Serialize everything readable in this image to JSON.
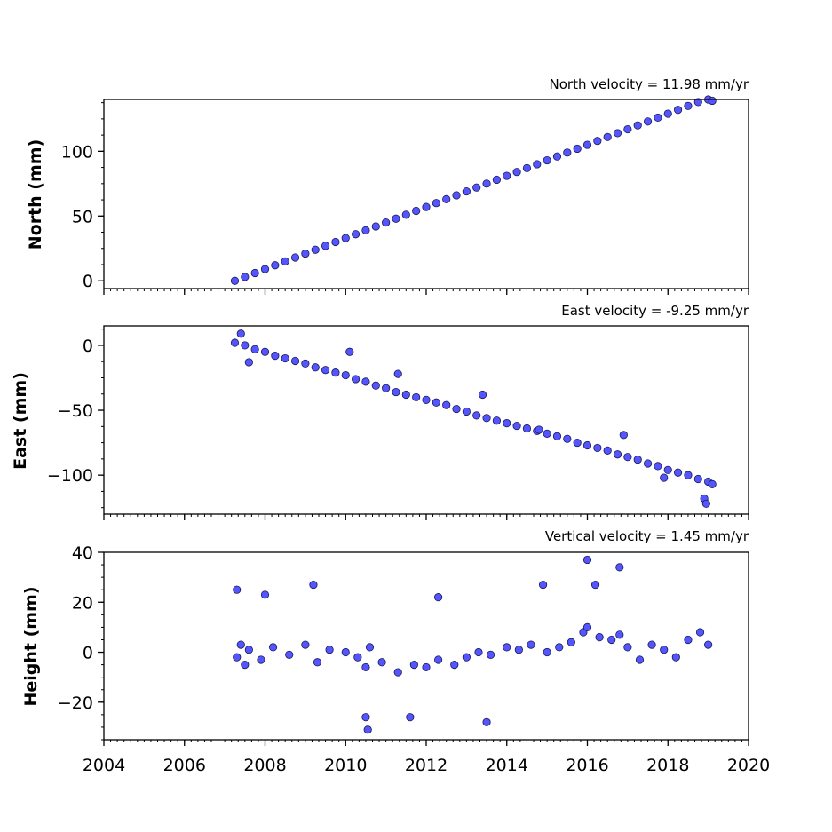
{
  "colors": {
    "marker_fill": "#5555ff",
    "marker_edge": "#1a1a55",
    "axes": "#000000"
  },
  "x_axis": {
    "ticks": [
      "2004",
      "2006",
      "2008",
      "2010",
      "2012",
      "2014",
      "2016",
      "2018",
      "2020"
    ],
    "xlim": [
      2004,
      2020
    ]
  },
  "chart_data": [
    {
      "type": "scatter",
      "title": "North velocity = 11.98 mm/yr",
      "ylabel": "North (mm)",
      "xlim": [
        2004,
        2020
      ],
      "ylim": [
        -6,
        140
      ],
      "yticks": [
        0,
        50,
        100
      ],
      "ytick_labels": [
        "0",
        "50",
        "100"
      ],
      "series": [
        {
          "x": [
            2007.25,
            2007.5,
            2007.75,
            2008.0,
            2008.25,
            2008.5,
            2008.75,
            2009.0,
            2009.25,
            2009.5,
            2009.75,
            2010.0,
            2010.25,
            2010.5,
            2010.75,
            2011.0,
            2011.25,
            2011.5,
            2011.75,
            2012.0,
            2012.25,
            2012.5,
            2012.75,
            2013.0,
            2013.25,
            2013.5,
            2013.75,
            2014.0,
            2014.25,
            2014.5,
            2014.75,
            2015.0,
            2015.25,
            2015.5,
            2015.75,
            2016.0,
            2016.25,
            2016.5,
            2016.75,
            2017.0,
            2017.25,
            2017.5,
            2017.75,
            2018.0,
            2018.25,
            2018.5,
            2018.75,
            2019.0,
            2019.1
          ],
          "y": [
            0,
            3,
            6,
            9,
            12,
            15,
            18,
            21,
            24,
            27,
            30,
            33,
            36,
            39,
            42,
            45,
            48,
            51,
            54,
            57,
            60,
            63,
            66,
            69,
            72,
            75,
            78,
            81,
            84,
            87,
            90,
            93,
            96,
            99,
            102,
            105,
            108,
            111,
            114,
            117,
            120,
            123,
            126,
            129,
            132,
            135,
            138,
            140,
            139
          ]
        }
      ]
    },
    {
      "type": "scatter",
      "title": "East velocity = -9.25 mm/yr",
      "ylabel": "East (mm)",
      "xlim": [
        2004,
        2020
      ],
      "ylim": [
        -130,
        15
      ],
      "yticks": [
        0,
        -50,
        -100
      ],
      "ytick_labels": [
        "0",
        "−50",
        "−100"
      ],
      "series": [
        {
          "x": [
            2007.25,
            2007.5,
            2007.75,
            2008.0,
            2008.25,
            2008.5,
            2008.75,
            2009.0,
            2009.25,
            2009.5,
            2009.75,
            2010.0,
            2010.25,
            2010.5,
            2010.75,
            2011.0,
            2011.25,
            2011.5,
            2011.75,
            2012.0,
            2012.25,
            2012.5,
            2012.75,
            2013.0,
            2013.25,
            2013.5,
            2013.75,
            2014.0,
            2014.25,
            2014.5,
            2014.75,
            2015.0,
            2015.25,
            2015.5,
            2015.75,
            2016.0,
            2016.25,
            2016.5,
            2016.75,
            2017.0,
            2017.25,
            2017.5,
            2017.75,
            2018.0,
            2018.25,
            2018.5,
            2018.75,
            2019.0,
            2019.1,
            2007.4,
            2007.6,
            2010.1,
            2011.3,
            2013.4,
            2014.8,
            2016.9,
            2017.9,
            2018.9,
            2018.95
          ],
          "y": [
            2,
            0,
            -3,
            -5,
            -8,
            -10,
            -12,
            -14,
            -17,
            -19,
            -21,
            -23,
            -26,
            -28,
            -31,
            -33,
            -36,
            -38,
            -40,
            -42,
            -44,
            -46,
            -49,
            -51,
            -54,
            -56,
            -58,
            -60,
            -62,
            -64,
            -66,
            -68,
            -70,
            -72,
            -75,
            -77,
            -79,
            -81,
            -84,
            -86,
            -88,
            -91,
            -93,
            -96,
            -98,
            -100,
            -103,
            -105,
            -107,
            9,
            -13,
            -5,
            -22,
            -38,
            -65,
            -69,
            -102,
            -118,
            -122
          ]
        }
      ]
    },
    {
      "type": "scatter",
      "title": "Vertical velocity = 1.45 mm/yr",
      "ylabel": "Height (mm)",
      "xlim": [
        2004,
        2020
      ],
      "ylim": [
        -35,
        40
      ],
      "yticks": [
        40,
        20,
        0,
        -20
      ],
      "ytick_labels": [
        "40",
        "20",
        "0",
        "−20"
      ],
      "series": [
        {
          "x": [
            2007.3,
            2007.4,
            2007.5,
            2007.6,
            2007.9,
            2008.2,
            2008.6,
            2009.0,
            2009.3,
            2009.6,
            2010.0,
            2010.3,
            2010.5,
            2010.6,
            2010.9,
            2011.3,
            2011.7,
            2012.0,
            2012.3,
            2012.7,
            2013.0,
            2013.3,
            2013.6,
            2014.0,
            2014.3,
            2014.6,
            2015.0,
            2015.3,
            2015.6,
            2015.9,
            2016.0,
            2016.3,
            2016.6,
            2016.8,
            2017.0,
            2017.3,
            2017.6,
            2017.9,
            2018.2,
            2018.5,
            2018.8,
            2019.0,
            2007.3,
            2008.0,
            2009.2,
            2010.5,
            2010.55,
            2011.6,
            2013.5,
            2016.0,
            2016.8,
            2016.2,
            2014.9,
            2012.3
          ],
          "y": [
            -2,
            3,
            -5,
            1,
            -3,
            2,
            -1,
            3,
            -4,
            1,
            0,
            -2,
            -6,
            2,
            -4,
            -8,
            -5,
            -6,
            -3,
            -5,
            -2,
            0,
            -1,
            2,
            1,
            3,
            0,
            2,
            4,
            8,
            10,
            6,
            5,
            7,
            2,
            -3,
            3,
            1,
            -2,
            5,
            8,
            3,
            25,
            23,
            27,
            -26,
            -31,
            -26,
            -28,
            37,
            34,
            27,
            27,
            22
          ]
        }
      ]
    }
  ]
}
